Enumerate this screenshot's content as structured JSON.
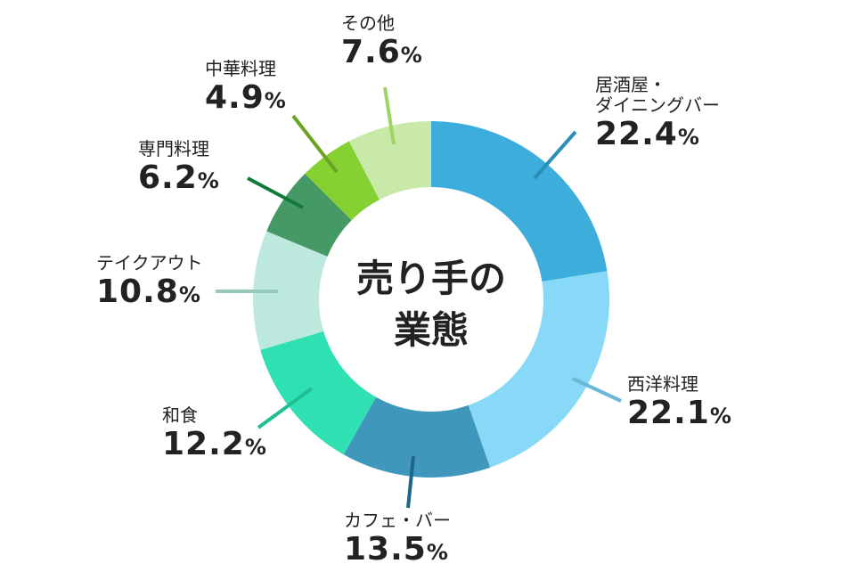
{
  "chart_data": {
    "type": "pie",
    "variant": "donut",
    "title": "売り手の業態",
    "unit": "%",
    "slices": [
      {
        "label": "居酒屋・ダイニングバー",
        "label_lines": [
          "居酒屋・",
          "ダイニングバー"
        ],
        "value": 22.4,
        "display": "22.4",
        "color": "#3daedb",
        "line_color": "#2a8fb8"
      },
      {
        "label": "西洋料理",
        "label_lines": [
          "西洋料理"
        ],
        "value": 22.1,
        "display": "22.1",
        "color": "#87d9f7",
        "line_color": "#6bb8d6"
      },
      {
        "label": "カフェ・バー",
        "label_lines": [
          "カフェ・バー"
        ],
        "value": 13.5,
        "display": "13.5",
        "color": "#3f97bc",
        "line_color": "#1d6688"
      },
      {
        "label": "和食",
        "label_lines": [
          "和食"
        ],
        "value": 12.2,
        "display": "12.2",
        "color": "#2fe0b2",
        "line_color": "#1fbf93"
      },
      {
        "label": "テイクアウト",
        "label_lines": [
          "テイクアウト"
        ],
        "value": 10.8,
        "display": "10.8",
        "color": "#bce8de",
        "line_color": "#95c9bb"
      },
      {
        "label": "専門料理",
        "label_lines": [
          "専門料理"
        ],
        "value": 6.2,
        "display": "6.2",
        "color": "#459965",
        "line_color": "#127a3a"
      },
      {
        "label": "中華料理",
        "label_lines": [
          "中華料理"
        ],
        "value": 4.9,
        "display": "4.9",
        "color": "#85d132",
        "line_color": "#6aa321"
      },
      {
        "label": "その他",
        "label_lines": [
          "その他"
        ],
        "value": 7.6,
        "display": "7.6",
        "color": "#c8e9a8",
        "line_color": "#9fd468"
      }
    ]
  }
}
